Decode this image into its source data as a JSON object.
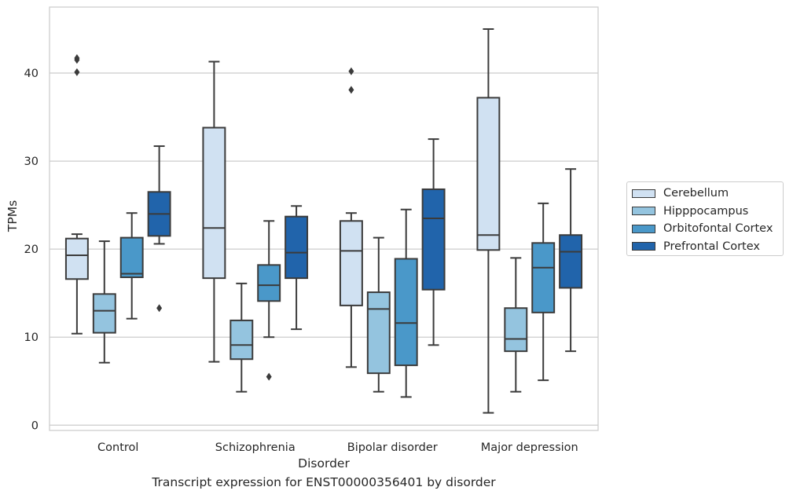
{
  "caption": "Transcript expression for ENST00000356401 by disorder",
  "chart_data": {
    "type": "boxplot",
    "title": "",
    "xlabel": "Disorder",
    "ylabel": "TPMs",
    "categories": [
      "Control",
      "Schizophrenia",
      "Bipolar disorder",
      "Major depression"
    ],
    "ylim": [
      -0.6,
      47.5
    ],
    "yticks": [
      0,
      10,
      20,
      30,
      40
    ],
    "grid": "horizontal",
    "legend_position": "right",
    "series": [
      {
        "name": "Cerebellum",
        "color": "#d0e1f2",
        "boxes": [
          {
            "whisker_low": 10.4,
            "q1": 16.6,
            "median": 19.3,
            "q3": 21.2,
            "whisker_high": 21.7,
            "outliers": [
              40.1,
              41.5,
              41.7
            ]
          },
          {
            "whisker_low": 7.2,
            "q1": 16.7,
            "median": 22.4,
            "q3": 33.8,
            "whisker_high": 41.3,
            "outliers": []
          },
          {
            "whisker_low": 6.6,
            "q1": 13.6,
            "median": 19.8,
            "q3": 23.2,
            "whisker_high": 24.1,
            "outliers": [
              38.1,
              40.2
            ]
          },
          {
            "whisker_low": 1.4,
            "q1": 19.9,
            "median": 21.6,
            "q3": 37.2,
            "whisker_high": 45.0,
            "outliers": []
          }
        ]
      },
      {
        "name": "Hipppocampus",
        "color": "#94c4df",
        "boxes": [
          {
            "whisker_low": 7.1,
            "q1": 10.5,
            "median": 13.0,
            "q3": 14.9,
            "whisker_high": 20.9,
            "outliers": []
          },
          {
            "whisker_low": 3.8,
            "q1": 7.5,
            "median": 9.1,
            "q3": 11.9,
            "whisker_high": 16.1,
            "outliers": []
          },
          {
            "whisker_low": 3.8,
            "q1": 5.9,
            "median": 13.2,
            "q3": 15.1,
            "whisker_high": 21.3,
            "outliers": []
          },
          {
            "whisker_low": 3.8,
            "q1": 8.4,
            "median": 9.8,
            "q3": 13.3,
            "whisker_high": 19.0,
            "outliers": []
          }
        ]
      },
      {
        "name": "Orbitofontal Cortex",
        "color": "#4a98c9",
        "boxes": [
          {
            "whisker_low": 12.1,
            "q1": 16.8,
            "median": 17.2,
            "q3": 21.3,
            "whisker_high": 24.1,
            "outliers": []
          },
          {
            "whisker_low": 10.0,
            "q1": 14.1,
            "median": 15.9,
            "q3": 18.2,
            "whisker_high": 23.2,
            "outliers": [
              5.5
            ]
          },
          {
            "whisker_low": 3.2,
            "q1": 6.8,
            "median": 11.6,
            "q3": 18.9,
            "whisker_high": 24.5,
            "outliers": []
          },
          {
            "whisker_low": 5.1,
            "q1": 12.8,
            "median": 17.9,
            "q3": 20.7,
            "whisker_high": 25.2,
            "outliers": []
          }
        ]
      },
      {
        "name": "Prefrontal Cortex",
        "color": "#2164ab",
        "boxes": [
          {
            "whisker_low": 20.6,
            "q1": 21.5,
            "median": 24.0,
            "q3": 26.5,
            "whisker_high": 31.7,
            "outliers": [
              13.3
            ]
          },
          {
            "whisker_low": 10.9,
            "q1": 16.7,
            "median": 19.6,
            "q3": 23.7,
            "whisker_high": 24.9,
            "outliers": []
          },
          {
            "whisker_low": 9.1,
            "q1": 15.4,
            "median": 23.5,
            "q3": 26.8,
            "whisker_high": 32.5,
            "outliers": []
          },
          {
            "whisker_low": 8.4,
            "q1": 15.6,
            "median": 19.7,
            "q3": 21.6,
            "whisker_high": 29.1,
            "outliers": []
          }
        ]
      }
    ]
  }
}
